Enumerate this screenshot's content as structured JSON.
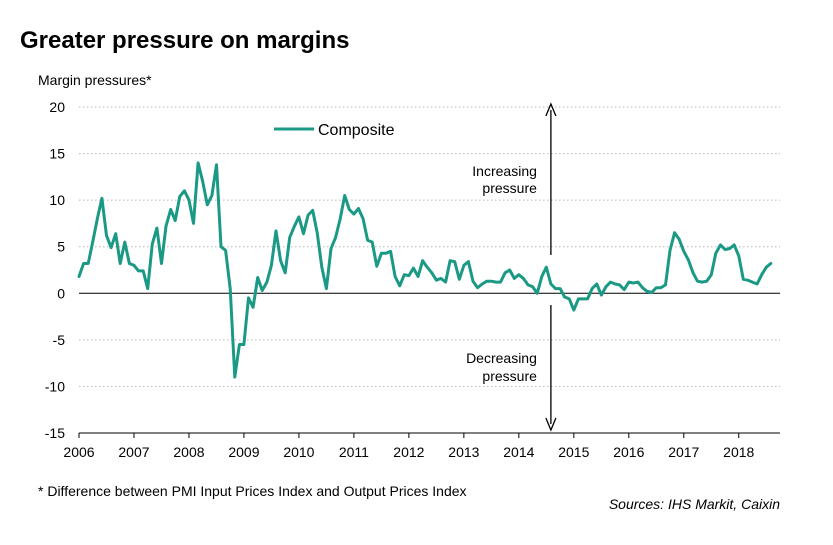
{
  "chart_data": {
    "type": "line",
    "title": "Greater pressure on margins",
    "ylabel": "Margin pressures*",
    "ylim": [
      -15,
      20
    ],
    "yticks": [
      20,
      15,
      10,
      5,
      0,
      -5,
      -10,
      -15
    ],
    "xlim": [
      2006.0,
      2018.75
    ],
    "xticks": [
      2006,
      2007,
      2008,
      2009,
      2010,
      2011,
      2012,
      2013,
      2014,
      2015,
      2016,
      2017,
      2018
    ],
    "grid": true,
    "legend": "top-left",
    "series": [
      {
        "name": "Composite",
        "color": "#1a9985",
        "x": [
          2006.0,
          2006.083,
          2006.167,
          2006.25,
          2006.333,
          2006.417,
          2006.5,
          2006.583,
          2006.667,
          2006.75,
          2006.833,
          2006.917,
          2007.0,
          2007.083,
          2007.167,
          2007.25,
          2007.333,
          2007.417,
          2007.5,
          2007.583,
          2007.667,
          2007.75,
          2007.833,
          2007.917,
          2008.0,
          2008.083,
          2008.167,
          2008.25,
          2008.333,
          2008.417,
          2008.5,
          2008.583,
          2008.667,
          2008.75,
          2008.833,
          2008.917,
          2009.0,
          2009.083,
          2009.167,
          2009.25,
          2009.333,
          2009.417,
          2009.5,
          2009.583,
          2009.667,
          2009.75,
          2009.833,
          2009.917,
          2010.0,
          2010.083,
          2010.167,
          2010.25,
          2010.333,
          2010.417,
          2010.5,
          2010.583,
          2010.667,
          2010.75,
          2010.833,
          2010.917,
          2011.0,
          2011.083,
          2011.167,
          2011.25,
          2011.333,
          2011.417,
          2011.5,
          2011.583,
          2011.667,
          2011.75,
          2011.833,
          2011.917,
          2012.0,
          2012.083,
          2012.167,
          2012.25,
          2012.333,
          2012.417,
          2012.5,
          2012.583,
          2012.667,
          2012.75,
          2012.833,
          2012.917,
          2013.0,
          2013.083,
          2013.167,
          2013.25,
          2013.333,
          2013.417,
          2013.5,
          2013.583,
          2013.667,
          2013.75,
          2013.833,
          2013.917,
          2014.0,
          2014.083,
          2014.167,
          2014.25,
          2014.333,
          2014.417,
          2014.5,
          2014.583,
          2014.667,
          2014.75,
          2014.833,
          2014.917,
          2015.0,
          2015.083,
          2015.167,
          2015.25,
          2015.333,
          2015.417,
          2015.5,
          2015.583,
          2015.667,
          2015.75,
          2015.833,
          2015.917,
          2016.0,
          2016.083,
          2016.167,
          2016.25,
          2016.333,
          2016.417,
          2016.5,
          2016.583,
          2016.667,
          2016.75,
          2016.833,
          2016.917,
          2017.0,
          2017.083,
          2017.167,
          2017.25,
          2017.333,
          2017.417,
          2017.5,
          2017.583,
          2017.667,
          2017.75,
          2017.833,
          2017.917,
          2018.0,
          2018.083,
          2018.167,
          2018.25,
          2018.333,
          2018.417,
          2018.5,
          2018.583
        ],
        "values": [
          1.8,
          3.2,
          3.2,
          5.5,
          8.0,
          10.2,
          6.2,
          4.9,
          6.4,
          3.2,
          5.5,
          3.2,
          3.0,
          2.4,
          2.4,
          0.5,
          5.3,
          7.0,
          3.2,
          7.2,
          9.0,
          7.8,
          10.4,
          11.0,
          10.0,
          7.5,
          14.0,
          12.0,
          9.5,
          10.5,
          13.8,
          5.0,
          4.6,
          0.5,
          -9.0,
          -5.5,
          -5.5,
          -0.5,
          -1.5,
          1.7,
          0.3,
          1.2,
          3.0,
          6.7,
          3.5,
          2.2,
          6.0,
          7.2,
          8.2,
          6.4,
          8.4,
          8.9,
          6.5,
          2.8,
          0.5,
          4.8,
          6.0,
          8.0,
          10.5,
          9.0,
          8.5,
          9.1,
          8.0,
          5.7,
          5.5,
          2.9,
          4.3,
          4.3,
          4.5,
          1.8,
          0.8,
          2.0,
          1.9,
          2.7,
          1.8,
          3.5,
          2.8,
          2.2,
          1.4,
          1.6,
          1.2,
          3.5,
          3.4,
          1.5,
          3.0,
          3.4,
          1.3,
          0.6,
          1.0,
          1.3,
          1.3,
          1.2,
          1.2,
          2.2,
          2.5,
          1.6,
          2.0,
          1.6,
          0.9,
          0.7,
          0.0,
          1.8,
          2.8,
          1.0,
          0.5,
          0.5,
          -0.4,
          -0.6,
          -1.8,
          -0.6,
          -0.6,
          -0.6,
          0.5,
          1.0,
          -0.2,
          0.7,
          1.2,
          1.0,
          0.9,
          0.4,
          1.2,
          1.1,
          1.2,
          0.6,
          0.2,
          0.1,
          0.6,
          0.6,
          0.9,
          4.6,
          6.5,
          5.8,
          4.5,
          3.6,
          2.2,
          1.3,
          1.2,
          1.3,
          2.0,
          4.3,
          5.2,
          4.7,
          4.8,
          5.2,
          4.0,
          1.5,
          1.4,
          1.2,
          1.0,
          2.0,
          2.8,
          3.2
        ]
      }
    ],
    "annotations": [
      {
        "text_line1": "Increasing",
        "text_line2": "pressure"
      },
      {
        "text_line1": "Decreasing",
        "text_line2": "pressure"
      }
    ],
    "divider_x": 2014.583
  },
  "footnote": "* Difference between PMI Input Prices Index and Output Prices Index",
  "sources": "Sources: IHS Markit, Caixin"
}
